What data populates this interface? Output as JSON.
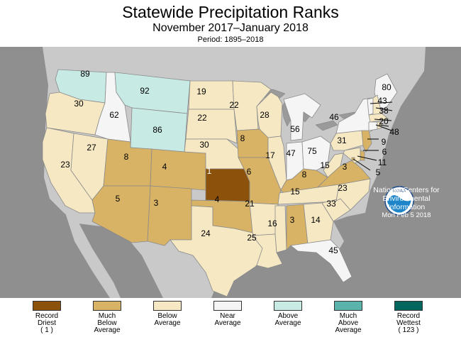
{
  "header": {
    "title": "Statewide Precipitation Ranks",
    "subtitle": "November 2017–January 2018",
    "period": "Period: 1895–2018"
  },
  "colors": {
    "record_driest": "#8c510a",
    "much_below": "#d8b365",
    "below": "#f6e8c3",
    "near": "#f5f5f5",
    "above": "#c7eae5",
    "much_above": "#5ab4ac",
    "record_wettest": "#01665e",
    "background": "#8f8f8f",
    "ocean_lake": "#9a9a9a"
  },
  "states": [
    {
      "id": "WA",
      "rank": "89",
      "category": "above"
    },
    {
      "id": "OR",
      "rank": "30",
      "category": "below"
    },
    {
      "id": "CA",
      "rank": "23",
      "category": "below"
    },
    {
      "id": "NV",
      "rank": "27",
      "category": "below"
    },
    {
      "id": "ID",
      "rank": "62",
      "category": "near"
    },
    {
      "id": "MT",
      "rank": "92",
      "category": "above"
    },
    {
      "id": "WY",
      "rank": "86",
      "category": "above"
    },
    {
      "id": "UT",
      "rank": "8",
      "category": "much_below"
    },
    {
      "id": "AZ",
      "rank": "5",
      "category": "much_below"
    },
    {
      "id": "CO",
      "rank": "4",
      "category": "much_below"
    },
    {
      "id": "NM",
      "rank": "3",
      "category": "much_below"
    },
    {
      "id": "ND",
      "rank": "19",
      "category": "below"
    },
    {
      "id": "SD",
      "rank": "22",
      "category": "below"
    },
    {
      "id": "NE",
      "rank": "30",
      "category": "below"
    },
    {
      "id": "KS",
      "rank": "1",
      "category": "record_driest"
    },
    {
      "id": "OK",
      "rank": "4",
      "category": "much_below"
    },
    {
      "id": "TX",
      "rank": "24",
      "category": "below"
    },
    {
      "id": "MN",
      "rank": "22",
      "category": "below"
    },
    {
      "id": "IA",
      "rank": "8",
      "category": "much_below"
    },
    {
      "id": "MO",
      "rank": "6",
      "category": "much_below"
    },
    {
      "id": "AR",
      "rank": "21",
      "category": "below"
    },
    {
      "id": "LA",
      "rank": "25",
      "category": "below"
    },
    {
      "id": "WI",
      "rank": "28",
      "category": "below"
    },
    {
      "id": "IL",
      "rank": "17",
      "category": "below"
    },
    {
      "id": "MI",
      "rank": "56",
      "category": "near"
    },
    {
      "id": "IN",
      "rank": "47",
      "category": "near"
    },
    {
      "id": "OH",
      "rank": "75",
      "category": "near"
    },
    {
      "id": "KY",
      "rank": "8",
      "category": "much_below"
    },
    {
      "id": "TN",
      "rank": "15",
      "category": "below"
    },
    {
      "id": "MS",
      "rank": "16",
      "category": "below"
    },
    {
      "id": "AL",
      "rank": "3",
      "category": "much_below"
    },
    {
      "id": "GA",
      "rank": "14",
      "category": "below"
    },
    {
      "id": "FL",
      "rank": "45",
      "category": "near"
    },
    {
      "id": "SC",
      "rank": "33",
      "category": "below"
    },
    {
      "id": "NC",
      "rank": "23",
      "category": "below"
    },
    {
      "id": "VA",
      "rank": "3",
      "category": "much_below"
    },
    {
      "id": "WV",
      "rank": "15",
      "category": "below"
    },
    {
      "id": "PA",
      "rank": "31",
      "category": "below"
    },
    {
      "id": "NY",
      "rank": "46",
      "category": "near"
    },
    {
      "id": "ME",
      "rank": "80",
      "category": "near"
    },
    {
      "id": "VT",
      "rank": "43",
      "category": "near"
    },
    {
      "id": "NH",
      "rank": "38",
      "category": "below"
    },
    {
      "id": "MA",
      "rank": "20",
      "category": "below"
    },
    {
      "id": "CT",
      "rank": "48",
      "category": "near"
    },
    {
      "id": "RI",
      "rank": "",
      "category": "below"
    },
    {
      "id": "NJ",
      "rank": "9",
      "category": "much_below"
    },
    {
      "id": "DE",
      "rank": "6",
      "category": "much_below"
    },
    {
      "id": "MD",
      "rank": "11",
      "category": "below"
    },
    {
      "id": "DC",
      "rank": "5",
      "category": "much_below"
    }
  ],
  "noaa": {
    "badge": "NOAA",
    "lines": [
      "National Centers for",
      "Environmental",
      "Information"
    ],
    "date": "Mon Feb  5 2018"
  },
  "legend": [
    {
      "key": "record_driest",
      "lines": [
        "Record",
        "Driest"
      ],
      "sub": "( 1 )"
    },
    {
      "key": "much_below",
      "lines": [
        "Much",
        "Below",
        "Average"
      ],
      "sub": ""
    },
    {
      "key": "below",
      "lines": [
        "Below",
        "Average"
      ],
      "sub": ""
    },
    {
      "key": "near",
      "lines": [
        "Near",
        "Average"
      ],
      "sub": ""
    },
    {
      "key": "above",
      "lines": [
        "Above",
        "Average"
      ],
      "sub": ""
    },
    {
      "key": "much_above",
      "lines": [
        "Much",
        "Above",
        "Average"
      ],
      "sub": ""
    },
    {
      "key": "record_wettest",
      "lines": [
        "Record",
        "Wettest"
      ],
      "sub": "( 123 )"
    }
  ]
}
